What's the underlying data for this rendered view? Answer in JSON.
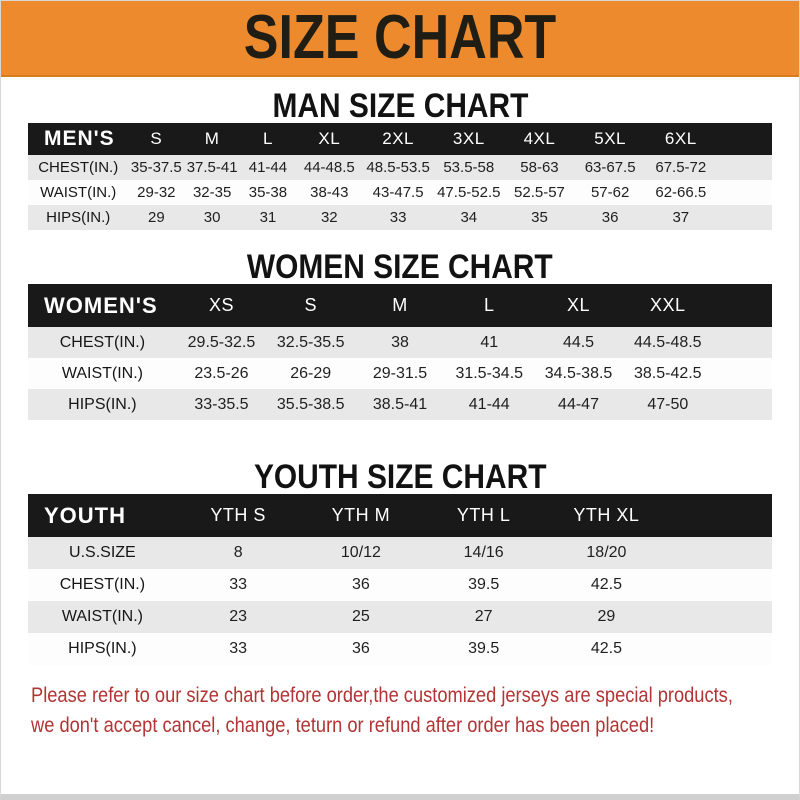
{
  "banner": {
    "title": "SIZE CHART",
    "bg_color": "#ec8a2d",
    "text_color": "#201d15"
  },
  "colors": {
    "header_bar": "#191919",
    "row_gray": "#e8e8e8",
    "row_white": "#fdfdfd",
    "footer_red": "#b23434"
  },
  "men": {
    "heading": "MAN SIZE CHART",
    "header": {
      "label": "MEN'S",
      "cols": [
        "S",
        "M",
        "L",
        "XL",
        "2XL",
        "3XL",
        "4XL",
        "5XL",
        "6XL"
      ]
    },
    "rows": [
      {
        "label": "CHEST(IN.)",
        "values": [
          "35-37.5",
          "37.5-41",
          "41-44",
          "44-48.5",
          "48.5-53.5",
          "53.5-58",
          "58-63",
          "63-67.5",
          "67.5-72"
        ]
      },
      {
        "label": "WAIST(IN.)",
        "values": [
          "29-32",
          "32-35",
          "35-38",
          "38-43",
          "43-47.5",
          "47.5-52.5",
          "52.5-57",
          "57-62",
          "62-66.5"
        ]
      },
      {
        "label": "HIPS(IN.)",
        "values": [
          "29",
          "30",
          "31",
          "32",
          "33",
          "34",
          "35",
          "36",
          "37"
        ]
      }
    ]
  },
  "women": {
    "heading": "WOMEN SIZE CHART",
    "header": {
      "label": "WOMEN'S",
      "cols": [
        "XS",
        "S",
        "M",
        "L",
        "XL",
        "XXL"
      ]
    },
    "rows": [
      {
        "label": "CHEST(IN.)",
        "values": [
          "29.5-32.5",
          "32.5-35.5",
          "38",
          "41",
          "44.5",
          "44.5-48.5"
        ]
      },
      {
        "label": "WAIST(IN.)",
        "values": [
          "23.5-26",
          "26-29",
          "29-31.5",
          "31.5-34.5",
          "34.5-38.5",
          "38.5-42.5"
        ]
      },
      {
        "label": "HIPS(IN.)",
        "values": [
          "33-35.5",
          "35.5-38.5",
          "38.5-41",
          "41-44",
          "44-47",
          "47-50"
        ]
      }
    ]
  },
  "youth": {
    "heading": "YOUTH SIZE CHART",
    "header": {
      "label": "YOUTH",
      "cols": [
        "YTH S",
        "YTH M",
        "YTH L",
        "YTH XL"
      ]
    },
    "rows": [
      {
        "label": "U.S.SIZE",
        "values": [
          "8",
          "10/12",
          "14/16",
          "18/20"
        ]
      },
      {
        "label": "CHEST(IN.)",
        "values": [
          "33",
          "36",
          "39.5",
          "42.5"
        ]
      },
      {
        "label": "WAIST(IN.)",
        "values": [
          "23",
          "25",
          "27",
          "29"
        ]
      },
      {
        "label": "HIPS(IN.)",
        "values": [
          "33",
          "36",
          "39.5",
          "42.5"
        ]
      }
    ]
  },
  "footer": {
    "line1": "Please refer to our size chart before order,the customized jerseys are special products,",
    "line2": "we don't accept cancel, change, teturn or refund after order has been placed!"
  }
}
